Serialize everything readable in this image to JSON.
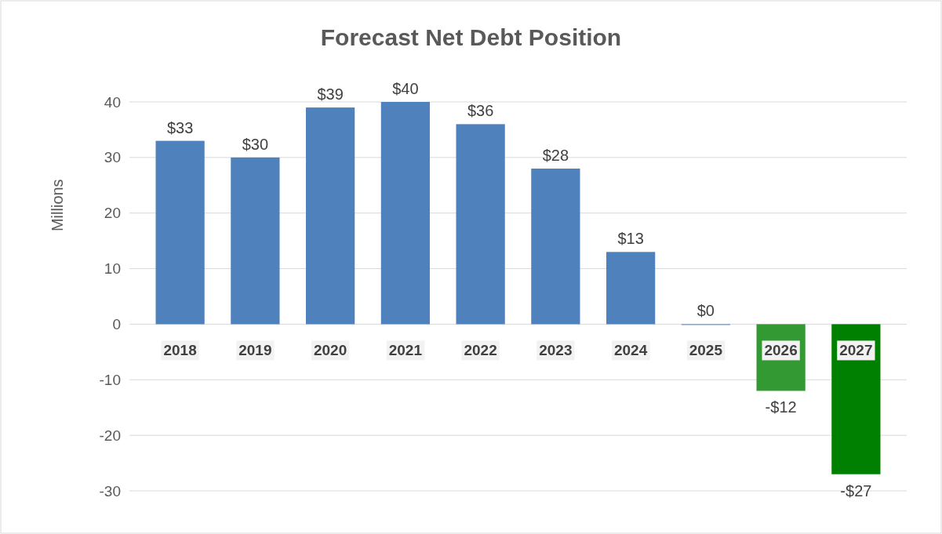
{
  "chart_data": {
    "type": "bar",
    "title": "Forecast Net Debt Position",
    "ylabel": "Millions",
    "categories": [
      "2018",
      "2019",
      "2020",
      "2021",
      "2022",
      "2023",
      "2024",
      "2025",
      "2026",
      "2027"
    ],
    "values": [
      33,
      30,
      39,
      40,
      36,
      28,
      13,
      0,
      -12,
      -27
    ],
    "colors": [
      "#4f81bd",
      "#4f81bd",
      "#4f81bd",
      "#4f81bd",
      "#4f81bd",
      "#4f81bd",
      "#4f81bd",
      "#4f81bd",
      "#339933",
      "#008000"
    ],
    "value_labels": [
      "$33",
      "$30",
      "$39",
      "$40",
      "$36",
      "$28",
      "$13",
      "$0",
      "-$12",
      "-$27"
    ],
    "ylim": [
      -30,
      40
    ],
    "yticks": [
      -30,
      -20,
      -10,
      0,
      10,
      20,
      30,
      40
    ],
    "grid": "y"
  }
}
